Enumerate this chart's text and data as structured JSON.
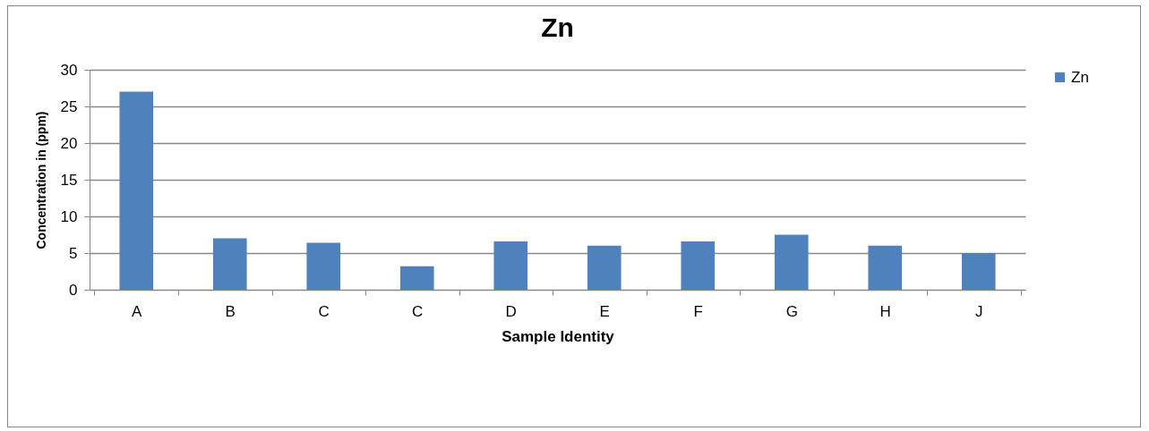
{
  "chart_data": {
    "type": "bar",
    "title": "Zn",
    "xlabel": "Sample Identity",
    "ylabel": "Concentration in (ppm)",
    "categories": [
      "A",
      "B",
      "C",
      "C",
      "D",
      "E",
      "F",
      "G",
      "H",
      "J"
    ],
    "series": [
      {
        "name": "Zn",
        "color": "#4f81bd",
        "values": [
          27,
          7,
          6.4,
          3.2,
          6.6,
          6.0,
          6.6,
          7.5,
          6.0,
          5.0
        ]
      }
    ],
    "ylim": [
      0,
      30
    ],
    "yticks": [
      0,
      5,
      10,
      15,
      20,
      25,
      30
    ],
    "grid": "y",
    "legend": "right"
  }
}
